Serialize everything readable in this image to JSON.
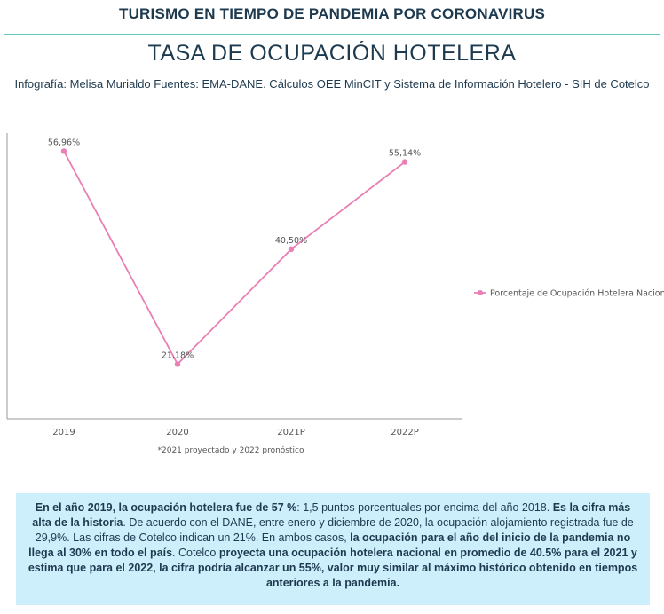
{
  "header": {
    "title": "TURISMO EN TIEMPO DE PANDEMIA POR CORONAVIRUS",
    "subtitle": "TASA DE OCUPACIÓN HOTELERA",
    "credits": "Infografía: Melisa Murialdo Fuentes: EMA-DANE. Cálculos OEE MinCIT y Sistema de Información Hotelero - SIH de Cotelco"
  },
  "chart_data": {
    "type": "line",
    "categories": [
      "2019",
      "2020",
      "2021P",
      "2022P"
    ],
    "series": [
      {
        "name": "Porcentaje de Ocupación Hotelera Nacional",
        "values": [
          56.96,
          21.18,
          40.5,
          55.14
        ],
        "labels": [
          "56,96%",
          "21,18%",
          "40,50%",
          "55,14%"
        ],
        "color": "#e97fb4"
      }
    ],
    "ylim": [
      12,
      60
    ],
    "grid": false,
    "legend": "right",
    "footnote": "*2021 proyectado y 2022 pronóstico"
  },
  "info": {
    "p1": "En el año 2019, la ocupación hotelera fue de 57 %",
    "p2": ": 1,5 puntos porcentuales por encima del año 2018. ",
    "p3": "Es la cifra más alta de la historia",
    "p4": ". De acuerdo con el DANE, entre enero y diciembre de 2020, la ocupación alojamiento registrada fue de 29,9%. Las cifras de Cotelco indican un 21%. En ambos casos, ",
    "p5": "la ocupación para el año del inicio de la pandemia no llega al 30% en todo el país",
    "p6": ". Cotelco ",
    "p7": "proyecta una ocupación hotelera nacional en promedio de 40.5% para el 2021 y estima que para el 2022, la cifra podría alcanzar un 55%, valor muy similar al máximo histórico obtenido en tiempos anteriores a la pandemia."
  }
}
